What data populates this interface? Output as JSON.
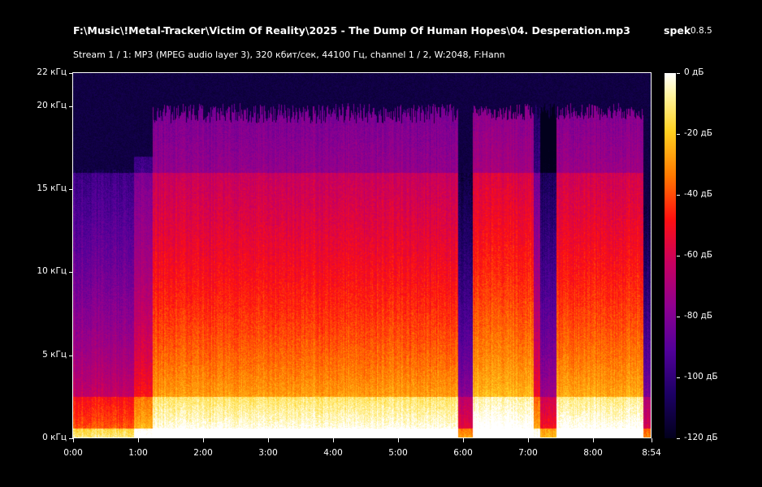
{
  "header": {
    "file_path": "F:\\Music\\!Metal-Tracker\\Victim Of Reality\\2025 - The Dump Of Human Hopes\\04. Desperation.mp3",
    "app_name": "spek",
    "app_version": "0.8.5",
    "stream_info": "Stream 1 / 1: MP3 (MPEG audio layer 3), 320 кбит/сек, 44100 Гц, channel 1 / 2, W:2048, F:Hann"
  },
  "frequency_axis": {
    "ticks": [
      {
        "value_khz": 22,
        "label": "22 кГц"
      },
      {
        "value_khz": 20,
        "label": "20 кГц"
      },
      {
        "value_khz": 15,
        "label": "15 кГц"
      },
      {
        "value_khz": 10,
        "label": "10 кГц"
      },
      {
        "value_khz": 5,
        "label": "5 кГц"
      },
      {
        "value_khz": 0,
        "label": "0 кГц"
      }
    ],
    "max_khz": 22
  },
  "time_axis": {
    "ticks": [
      {
        "value_s": 0,
        "label": "0:00"
      },
      {
        "value_s": 60,
        "label": "1:00"
      },
      {
        "value_s": 120,
        "label": "2:00"
      },
      {
        "value_s": 180,
        "label": "3:00"
      },
      {
        "value_s": 240,
        "label": "4:00"
      },
      {
        "value_s": 300,
        "label": "5:00"
      },
      {
        "value_s": 360,
        "label": "6:00"
      },
      {
        "value_s": 420,
        "label": "7:00"
      },
      {
        "value_s": 480,
        "label": "8:00"
      },
      {
        "value_s": 534,
        "label": "8:54"
      }
    ],
    "duration_s": 534
  },
  "colorbar": {
    "ticks": [
      {
        "value_db": 0,
        "label": "0 дБ"
      },
      {
        "value_db": -20,
        "label": "-20 дБ"
      },
      {
        "value_db": -40,
        "label": "-40 дБ"
      },
      {
        "value_db": -60,
        "label": "-60 дБ"
      },
      {
        "value_db": -80,
        "label": "-80 дБ"
      },
      {
        "value_db": -100,
        "label": "-100 дБ"
      },
      {
        "value_db": -120,
        "label": "-120 дБ"
      }
    ],
    "min_db": -120,
    "max_db": 0,
    "colors": [
      "#ffffff",
      "#ffd020",
      "#ff7a00",
      "#ff1010",
      "#8e0090",
      "#1c0064",
      "#02001c"
    ]
  }
}
